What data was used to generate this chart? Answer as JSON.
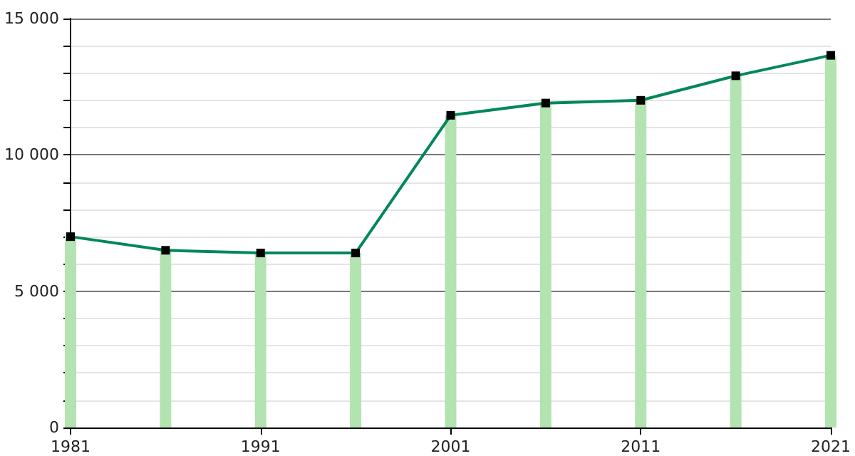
{
  "chart_data": {
    "type": "line",
    "x": [
      1981,
      1986,
      1991,
      1996,
      2001,
      2006,
      2011,
      2016,
      2021
    ],
    "series": [
      {
        "type": "bar",
        "color": "#b3e3b0",
        "values": [
          7000,
          6500,
          6400,
          6400,
          11450,
          11900,
          12000,
          12900,
          13650
        ]
      },
      {
        "color": "#00875a",
        "marker": "square",
        "values": [
          7000,
          6500,
          6400,
          6400,
          11450,
          11900,
          12000,
          12900,
          13650
        ]
      }
    ],
    "xlim": [
      1981,
      2021
    ],
    "xticks": [
      1981,
      1991,
      2001,
      2011,
      2021
    ],
    "ylim": [
      0,
      15000
    ],
    "yticks": [
      {
        "value": 0,
        "label": "0"
      },
      {
        "value": 1000,
        "label": null
      },
      {
        "value": 2000,
        "label": null
      },
      {
        "value": 3000,
        "label": null
      },
      {
        "value": 4000,
        "label": null
      },
      {
        "value": 5000,
        "label": "5 000"
      },
      {
        "value": 6000,
        "label": null
      },
      {
        "value": 7000,
        "label": null
      },
      {
        "value": 8000,
        "label": null
      },
      {
        "value": 9000,
        "label": null
      },
      {
        "value": 10000,
        "label": "10 000"
      },
      {
        "value": 11000,
        "label": null
      },
      {
        "value": 12000,
        "label": null
      },
      {
        "value": 13000,
        "label": null
      },
      {
        "value": 14000,
        "label": null
      },
      {
        "value": 15000,
        "label": "15 000"
      }
    ],
    "grid": "y"
  }
}
